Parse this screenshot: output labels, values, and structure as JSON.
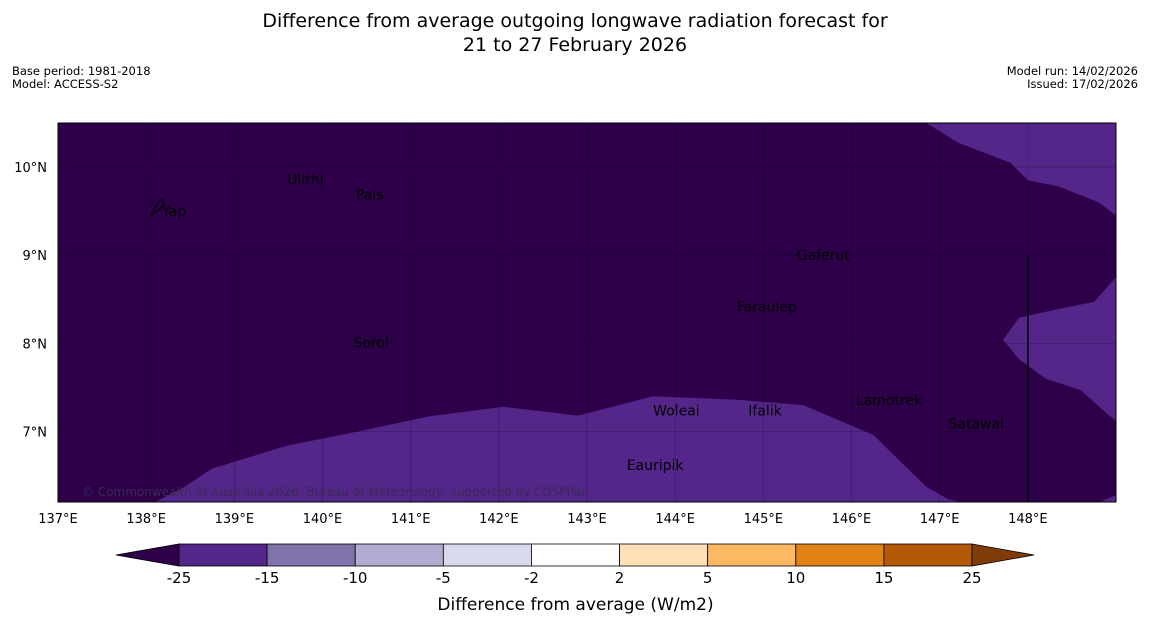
{
  "title": {
    "line1": "Difference from average outgoing longwave radiation forecast for",
    "line2": "21 to 27 February 2026"
  },
  "info": {
    "base_period": "Base period: 1981-2018",
    "model": "Model: ACCESS-S2",
    "model_run": "Model run: 14/02/2026",
    "issued": "Issued: 17/02/2026"
  },
  "map": {
    "lon_range": [
      137,
      149
    ],
    "lat_range": [
      6.2,
      10.5
    ],
    "x_ticks": [
      {
        "value": 137,
        "label": "137°E"
      },
      {
        "value": 138,
        "label": "138°E"
      },
      {
        "value": 139,
        "label": "139°E"
      },
      {
        "value": 140,
        "label": "140°E"
      },
      {
        "value": 141,
        "label": "141°E"
      },
      {
        "value": 142,
        "label": "142°E"
      },
      {
        "value": 143,
        "label": "143°E"
      },
      {
        "value": 144,
        "label": "144°E"
      },
      {
        "value": 145,
        "label": "145°E"
      },
      {
        "value": 146,
        "label": "146°E"
      },
      {
        "value": 147,
        "label": "147°E"
      },
      {
        "value": 148,
        "label": "148°E"
      }
    ],
    "y_ticks": [
      {
        "value": 10,
        "label": "10°N"
      },
      {
        "value": 9,
        "label": "9°N"
      },
      {
        "value": 8,
        "label": "8°N"
      },
      {
        "value": 7,
        "label": "7°N"
      }
    ],
    "background_color": "#2d0049",
    "anomaly_color": "#54268a",
    "anomaly_regions": [
      [
        [
          138.1,
          6.2
        ],
        [
          138.4,
          6.35
        ],
        [
          138.75,
          6.58
        ],
        [
          139.6,
          6.84
        ],
        [
          140.4,
          7.0
        ],
        [
          141.2,
          7.17
        ],
        [
          142.05,
          7.28
        ],
        [
          142.9,
          7.18
        ],
        [
          143.75,
          7.4
        ],
        [
          144.7,
          7.36
        ],
        [
          145.45,
          7.3
        ],
        [
          146.25,
          6.96
        ],
        [
          146.85,
          6.37
        ],
        [
          147.1,
          6.23
        ],
        [
          147.25,
          6.2
        ]
      ],
      [
        [
          146.85,
          10.5
        ],
        [
          147.2,
          10.28
        ],
        [
          147.8,
          10.05
        ],
        [
          148.0,
          9.85
        ],
        [
          148.35,
          9.78
        ],
        [
          148.8,
          9.6
        ],
        [
          149.0,
          9.45
        ],
        [
          149.0,
          10.5
        ]
      ],
      [
        [
          149.0,
          8.75
        ],
        [
          148.75,
          8.47
        ],
        [
          148.3,
          8.38
        ],
        [
          147.9,
          8.29
        ],
        [
          147.72,
          8.04
        ],
        [
          147.9,
          7.82
        ],
        [
          148.2,
          7.6
        ],
        [
          148.6,
          7.47
        ],
        [
          148.9,
          7.2
        ],
        [
          149.0,
          7.12
        ]
      ],
      [
        [
          148.82,
          6.2
        ],
        [
          149.0,
          6.28
        ],
        [
          149.0,
          6.2
        ]
      ]
    ],
    "island_line": {
      "lon": 148.0,
      "lat_from": 6.2,
      "lat_to": 8.99
    },
    "places": [
      {
        "name": "Yap",
        "lon": 138.18,
        "lat": 9.5
      },
      {
        "name": "Ulithi",
        "lon": 139.6,
        "lat": 9.86
      },
      {
        "name": "Pais",
        "lon": 140.38,
        "lat": 9.69
      },
      {
        "name": "Gaferut",
        "lon": 145.38,
        "lat": 9.0
      },
      {
        "name": "Faraulep",
        "lon": 144.7,
        "lat": 8.42
      },
      {
        "name": "Sorol",
        "lon": 140.35,
        "lat": 8.01
      },
      {
        "name": "Woleai",
        "lon": 143.75,
        "lat": 7.24
      },
      {
        "name": "Ifalik",
        "lon": 144.83,
        "lat": 7.24
      },
      {
        "name": "Lamotrek",
        "lon": 146.05,
        "lat": 7.36
      },
      {
        "name": "Satawal",
        "lon": 147.1,
        "lat": 7.09
      },
      {
        "name": "Eauripik",
        "lon": 143.45,
        "lat": 6.62
      }
    ],
    "copyright": "© Commonwealth of Australia 2026, Bureau of Meteorology, supported by COSPPac"
  },
  "colorbar": {
    "label": "Difference from average (W/m2)",
    "ticks": [
      "-25",
      "-15",
      "-10",
      "-5",
      "-2",
      "2",
      "5",
      "10",
      "15",
      "25"
    ],
    "low_extend_color": "#2d0049",
    "high_extend_color": "#7f3b08",
    "colors": [
      "#54268a",
      "#8073ac",
      "#b2abd2",
      "#d8daeb",
      "#ffffff",
      "#fee0b6",
      "#fdb863",
      "#e08214",
      "#b35806"
    ]
  }
}
